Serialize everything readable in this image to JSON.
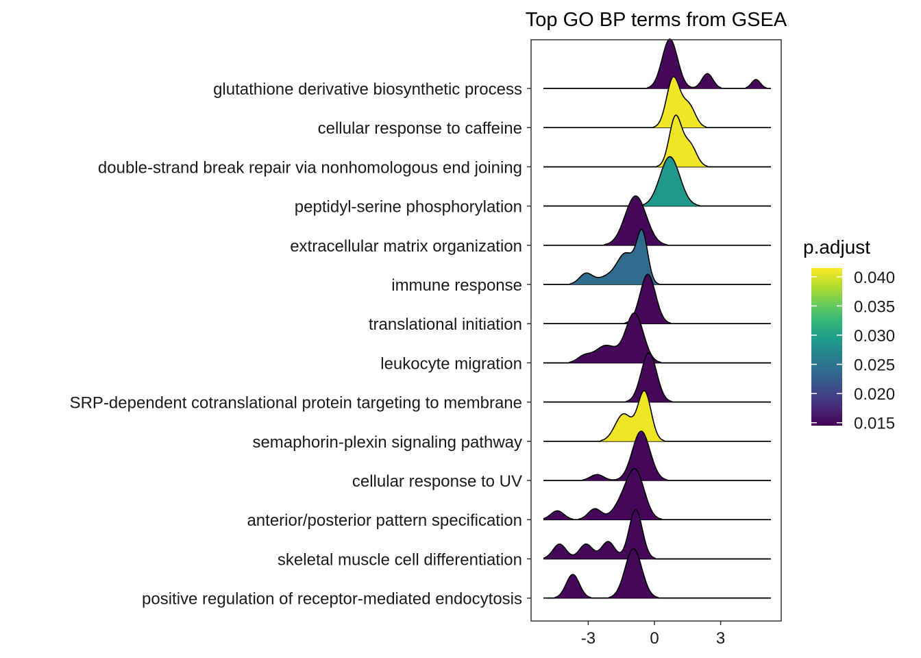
{
  "chart_data": {
    "type": "ridgeline",
    "title": "Top GO BP terms from GSEA",
    "xlabel": "",
    "ylabel": "",
    "xlim": [
      -5.0,
      5.9
    ],
    "x_ticks": [
      -3,
      0,
      3
    ],
    "x_tick_labels": [
      "-3",
      "0",
      "3"
    ],
    "grid": false,
    "legend": {
      "title": "p.adjust",
      "position": "right",
      "ticks": [
        0.015,
        0.02,
        0.025,
        0.03,
        0.035,
        0.04
      ],
      "tick_labels": [
        "0.015",
        "0.020",
        "0.025",
        "0.030",
        "0.035",
        "0.040"
      ],
      "range": [
        0.0145,
        0.0415
      ],
      "colors": [
        "#440154",
        "#482878",
        "#3E4A89",
        "#31688E",
        "#26828E",
        "#1F9E89",
        "#35B779",
        "#6DCD59",
        "#B4DE2C",
        "#FDE725"
      ]
    },
    "series": [
      {
        "name": "glutathione derivative biosynthetic process",
        "p_adjust": 0.015,
        "peaks": [
          [
            0.7,
            0.35,
            1.0
          ],
          [
            2.4,
            0.25,
            0.3
          ],
          [
            4.6,
            0.2,
            0.18
          ]
        ]
      },
      {
        "name": "cellular response to caffeine",
        "p_adjust": 0.041,
        "peaks": [
          [
            0.85,
            0.3,
            1.0
          ],
          [
            1.55,
            0.3,
            0.45
          ]
        ]
      },
      {
        "name": "double-strand break repair via nonhomologous end joining",
        "p_adjust": 0.041,
        "peaks": [
          [
            0.95,
            0.28,
            1.0
          ],
          [
            1.6,
            0.3,
            0.45
          ]
        ]
      },
      {
        "name": "peptidyl-serine phosphorylation",
        "p_adjust": 0.029,
        "peaks": [
          [
            0.7,
            0.45,
            1.0
          ]
        ]
      },
      {
        "name": "extracellular matrix organization",
        "p_adjust": 0.015,
        "peaks": [
          [
            -0.85,
            0.48,
            1.0
          ]
        ]
      },
      {
        "name": "immune response",
        "p_adjust": 0.024,
        "peaks": [
          [
            -0.55,
            0.25,
            1.0
          ],
          [
            -1.3,
            0.4,
            0.62
          ],
          [
            -3.1,
            0.3,
            0.22
          ],
          [
            -2.2,
            0.4,
            0.14
          ]
        ]
      },
      {
        "name": "translational initiation",
        "p_adjust": 0.015,
        "peaks": [
          [
            -0.3,
            0.35,
            1.0
          ]
        ]
      },
      {
        "name": "leukocyte migration",
        "p_adjust": 0.015,
        "peaks": [
          [
            -0.9,
            0.4,
            1.0
          ],
          [
            -2.2,
            0.5,
            0.35
          ],
          [
            -3.2,
            0.3,
            0.12
          ]
        ]
      },
      {
        "name": "SRP-dependent cotranslational protein targeting to membrane",
        "p_adjust": 0.015,
        "peaks": [
          [
            -0.25,
            0.35,
            1.0
          ]
        ]
      },
      {
        "name": "semaphorin-plexin signaling pathway",
        "p_adjust": 0.041,
        "peaks": [
          [
            -0.45,
            0.3,
            1.0
          ],
          [
            -1.4,
            0.38,
            0.55
          ]
        ]
      },
      {
        "name": "cellular response to UV",
        "p_adjust": 0.015,
        "peaks": [
          [
            -0.6,
            0.4,
            1.0
          ],
          [
            -2.6,
            0.3,
            0.12
          ]
        ]
      },
      {
        "name": "anterior/posterior pattern specification",
        "p_adjust": 0.015,
        "peaks": [
          [
            -0.85,
            0.4,
            0.95
          ],
          [
            -1.5,
            0.4,
            0.28
          ],
          [
            -2.7,
            0.3,
            0.22
          ],
          [
            -4.4,
            0.3,
            0.18
          ]
        ]
      },
      {
        "name": "skeletal muscle cell differentiation",
        "p_adjust": 0.015,
        "peaks": [
          [
            -0.85,
            0.3,
            1.0
          ],
          [
            -2.1,
            0.3,
            0.35
          ],
          [
            -3.1,
            0.3,
            0.3
          ],
          [
            -4.3,
            0.3,
            0.3
          ]
        ]
      },
      {
        "name": "positive regulation of receptor-mediated endocytosis",
        "p_adjust": 0.015,
        "peaks": [
          [
            -0.95,
            0.38,
            1.0
          ],
          [
            -3.7,
            0.3,
            0.48
          ]
        ]
      }
    ]
  }
}
